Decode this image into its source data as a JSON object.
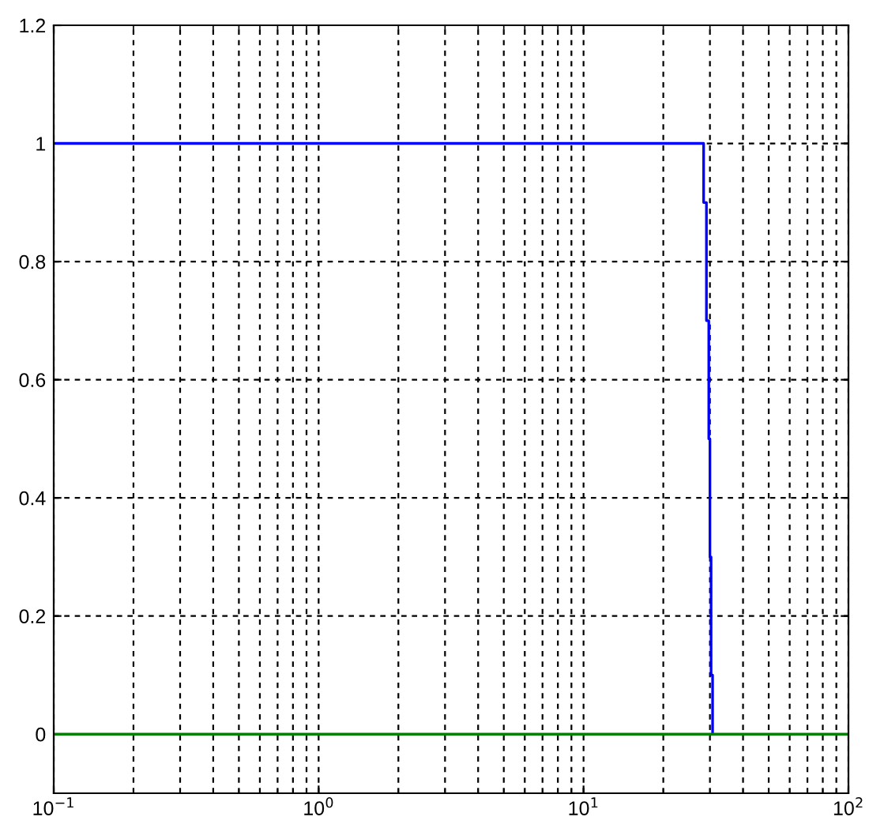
{
  "chart_data": {
    "type": "line",
    "log": "x",
    "xlim": [
      0.1,
      100
    ],
    "ylim": [
      -0.1,
      1.2
    ],
    "xticks": [
      {
        "value": 0.1,
        "label": "10$^{−1}$"
      },
      {
        "value": 1,
        "label": "10$^{0}$"
      },
      {
        "value": 10,
        "label": "10$^{1}$"
      },
      {
        "value": 100,
        "label": "10$^{2}$"
      }
    ],
    "yticks": [
      0,
      0.2,
      0.4,
      0.6,
      0.8,
      1,
      1.2
    ],
    "grid": true,
    "line_style": "solid",
    "marker": "none",
    "series": [
      {
        "color": "#0000ff",
        "x": [
          0.1,
          28.4,
          28.4,
          29.1,
          29.1,
          29.7,
          29.7,
          30.0,
          30.0,
          30.3,
          30.3,
          30.7,
          30.7
        ],
        "values": [
          1,
          1,
          0.9,
          0.9,
          0.7,
          0.7,
          0.5,
          0.5,
          0.3,
          0.3,
          0.1,
          0.1,
          0
        ]
      },
      {
        "color": "#008000",
        "x": [
          0.1,
          100
        ],
        "values": [
          0,
          0
        ]
      }
    ]
  }
}
